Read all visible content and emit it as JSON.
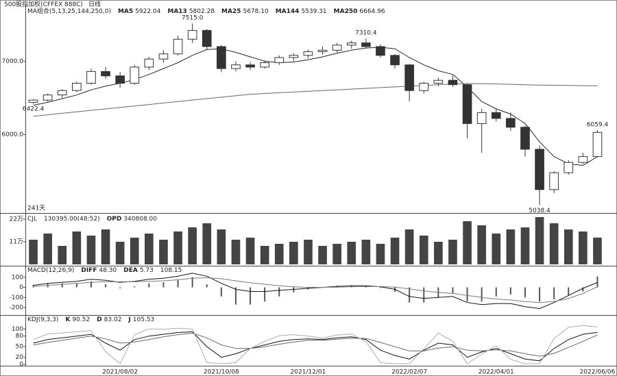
{
  "chart_data": [
    {
      "type": "candlestick",
      "title": "500股指加权(CFFEX 888C)",
      "period": "日线",
      "indicator": "MA组合(5,13,25,144,250,0)",
      "readouts": [
        {
          "name": "MA5",
          "value": 5922.04
        },
        {
          "name": "MA13",
          "value": 5802.28
        },
        {
          "name": "MA25",
          "value": 5678.1,
          "label": "5678.10"
        },
        {
          "name": "MA144",
          "value": 5539.31
        },
        {
          "name": "MA250",
          "value": 6664.96
        }
      ],
      "span_label": "241天",
      "categories": [
        null,
        null,
        null,
        null,
        null,
        null,
        "2021/08/02",
        null,
        null,
        null,
        null,
        null,
        null,
        "2021/10/08",
        null,
        null,
        null,
        null,
        null,
        "2021/12/01",
        null,
        null,
        null,
        null,
        null,
        null,
        "2022/02/07",
        null,
        null,
        null,
        null,
        null,
        "2022/04/01",
        null,
        null,
        null,
        null,
        null,
        null,
        "2022/06/06"
      ],
      "ohlc": [
        [
          6440,
          6480,
          6422.4,
          6470
        ],
        [
          6470,
          6560,
          6450,
          6540
        ],
        [
          6540,
          6620,
          6500,
          6600
        ],
        [
          6600,
          6720,
          6580,
          6700
        ],
        [
          6700,
          6900,
          6680,
          6860
        ],
        [
          6860,
          6920,
          6760,
          6800
        ],
        [
          6800,
          6850,
          6640,
          6700
        ],
        [
          6700,
          6950,
          6680,
          6920
        ],
        [
          6920,
          7060,
          6880,
          7030
        ],
        [
          7030,
          7150,
          6980,
          7100
        ],
        [
          7100,
          7350,
          7080,
          7300
        ],
        [
          7300,
          7515,
          7250,
          7420
        ],
        [
          7420,
          7440,
          7150,
          7200
        ],
        [
          7200,
          7220,
          6850,
          6900
        ],
        [
          6900,
          7000,
          6860,
          6950
        ],
        [
          6950,
          6990,
          6880,
          6920
        ],
        [
          6920,
          7010,
          6900,
          6980
        ],
        [
          6980,
          7080,
          6950,
          7050
        ],
        [
          7050,
          7110,
          7000,
          7080
        ],
        [
          7080,
          7160,
          7040,
          7130
        ],
        [
          7130,
          7200,
          7090,
          7150
        ],
        [
          7150,
          7250,
          7120,
          7220
        ],
        [
          7220,
          7280,
          7170,
          7250
        ],
        [
          7250,
          7310.4,
          7180,
          7200
        ],
        [
          7200,
          7230,
          7050,
          7080
        ],
        [
          7080,
          7100,
          6900,
          6950
        ],
        [
          6950,
          6960,
          6450,
          6600
        ],
        [
          6600,
          6720,
          6560,
          6700
        ],
        [
          6700,
          6780,
          6660,
          6740
        ],
        [
          6740,
          6800,
          6650,
          6680
        ],
        [
          6680,
          6700,
          5950,
          6150
        ],
        [
          6150,
          6350,
          5750,
          6300
        ],
        [
          6300,
          6350,
          6180,
          6220
        ],
        [
          6220,
          6300,
          6050,
          6100
        ],
        [
          6100,
          6120,
          5700,
          5800
        ],
        [
          5800,
          5850,
          5038.4,
          5250
        ],
        [
          5250,
          5500,
          5200,
          5480
        ],
        [
          5480,
          5650,
          5450,
          5620
        ],
        [
          5620,
          5750,
          5600,
          5700
        ],
        [
          5700,
          6059.4,
          5690,
          6030
        ]
      ],
      "up_color": "#ffffff",
      "down_color": "#333333",
      "series": [
        {
          "color": "#222222",
          "values": [
            6400,
            6440,
            6490,
            6540,
            6610,
            6660,
            6700,
            6750,
            6820,
            6900,
            6980,
            7080,
            7160,
            7170,
            7120,
            7060,
            7000,
            6980,
            6990,
            7020,
            7060,
            7110,
            7150,
            7180,
            7190,
            7170,
            7050,
            6950,
            6870,
            6820,
            6650,
            6450,
            6350,
            6280,
            6150,
            5900,
            5700,
            5600,
            5580,
            5700
          ]
        },
        {
          "color": "#666666",
          "values": [
            6250,
            6270,
            6290,
            6310,
            6330,
            6350,
            6370,
            6390,
            6410,
            6430,
            6450,
            6470,
            6490,
            6510,
            6530,
            6550,
            6560,
            6570,
            6580,
            6590,
            6600,
            6610,
            6620,
            6630,
            6640,
            6650,
            6660,
            6670,
            6680,
            6690,
            6695,
            6695,
            6690,
            6685,
            6680,
            6675,
            6672,
            6670,
            6667,
            6665
          ]
        }
      ],
      "annotations": [
        {
          "index": 11,
          "value": 7515,
          "label": "7515.0"
        },
        {
          "index": 23,
          "value": 7310.4
        },
        {
          "index": 0,
          "value": 6422.4
        },
        {
          "index": 39,
          "value": 6059.4
        },
        {
          "index": 35,
          "value": 5038.4
        }
      ],
      "ylim": [
        4940,
        7760
      ],
      "yticks": [
        {
          "value": 7000,
          "label": "7000.0"
        },
        {
          "value": 6000,
          "label": "6000.0"
        }
      ]
    },
    {
      "type": "bar",
      "indicator": "CJL",
      "readouts": [
        {
          "value": 130395,
          "label": "130395.00(48:52)"
        },
        {
          "name": "OPD",
          "value": 340808,
          "label": "340808.00"
        }
      ],
      "color": "#444444",
      "values": [
        120000,
        150000,
        90000,
        160000,
        140000,
        170000,
        110000,
        130000,
        150000,
        120000,
        160000,
        180000,
        200000,
        170000,
        120000,
        130000,
        90000,
        100000,
        110000,
        120000,
        90000,
        100000,
        110000,
        120000,
        100000,
        130000,
        170000,
        140000,
        110000,
        120000,
        210000,
        190000,
        150000,
        170000,
        180000,
        230000,
        200000,
        170000,
        160000,
        130395
      ],
      "ylim": [
        0,
        240000
      ],
      "yticks": [
        {
          "value": 220000,
          "label": "22万"
        },
        {
          "value": 110000,
          "label": "11万"
        }
      ]
    },
    {
      "type": "macd",
      "indicator": "MACD(12,26,9)",
      "readouts": [
        {
          "name": "DIFF",
          "value": 48.3,
          "label": "48.30"
        },
        {
          "name": "DEA",
          "value": 5.73
        },
        {
          "value": 108.15
        }
      ],
      "color": "#555555",
      "values": [
        20,
        40,
        40,
        40,
        60,
        30,
        -10,
        10,
        40,
        50,
        70,
        100,
        30,
        -90,
        -170,
        -170,
        -140,
        -90,
        -50,
        -20,
        0,
        16,
        20,
        14,
        -6,
        -44,
        -150,
        -150,
        -100,
        -60,
        -140,
        -140,
        -90,
        -70,
        -100,
        -140,
        -120,
        -80,
        -40,
        108.15
      ],
      "series": [
        {
          "color": "#111111",
          "values": [
            20,
            40,
            50,
            60,
            80,
            70,
            50,
            60,
            80,
            90,
            110,
            140,
            110,
            40,
            -20,
            -40,
            -40,
            -30,
            -20,
            -10,
            0,
            10,
            15,
            15,
            5,
            -20,
            -90,
            -110,
            -100,
            -90,
            -150,
            -170,
            -160,
            -160,
            -190,
            -210,
            -150,
            -80,
            -10,
            48.3
          ]
        },
        {
          "color": "#777777",
          "values": [
            10,
            20,
            30,
            40,
            50,
            55,
            55,
            55,
            60,
            65,
            75,
            90,
            95,
            85,
            65,
            45,
            30,
            15,
            5,
            0,
            0,
            2,
            5,
            8,
            8,
            2,
            -15,
            -35,
            -50,
            -60,
            -80,
            -100,
            -115,
            -125,
            -140,
            -150,
            -140,
            -110,
            -60,
            5.73
          ]
        }
      ],
      "ylim": [
        -260,
        200
      ],
      "yticks": [
        100,
        0,
        -100,
        -200
      ]
    },
    {
      "type": "line",
      "indicator": "KDJ(9,3,3)",
      "readouts": [
        {
          "name": "K",
          "value": 90.52
        },
        {
          "name": "D",
          "value": 83.02
        },
        {
          "name": "J",
          "value": 105.53
        }
      ],
      "series": [
        {
          "color": "#111111",
          "values": [
            60,
            70,
            75,
            80,
            85,
            60,
            40,
            70,
            80,
            85,
            90,
            92,
            50,
            20,
            30,
            45,
            55,
            65,
            70,
            72,
            70,
            75,
            78,
            70,
            40,
            25,
            15,
            40,
            60,
            55,
            20,
            35,
            45,
            30,
            15,
            10,
            45,
            70,
            85,
            90.52
          ]
        },
        {
          "color": "#666666",
          "values": [
            55,
            62,
            68,
            74,
            80,
            72,
            60,
            63,
            70,
            78,
            84,
            88,
            75,
            55,
            45,
            45,
            50,
            57,
            63,
            68,
            68,
            71,
            74,
            73,
            62,
            50,
            38,
            38,
            46,
            50,
            40,
            38,
            41,
            38,
            30,
            23,
            31,
            48,
            65,
            83.02
          ]
        },
        {
          "color": "#aaaaaa",
          "values": [
            70,
            86,
            89,
            92,
            95,
            36,
            2,
            84,
            100,
            99,
            102,
            100,
            5,
            2,
            5,
            45,
            65,
            81,
            84,
            80,
            74,
            83,
            86,
            64,
            5,
            2,
            2,
            44,
            88,
            65,
            2,
            29,
            53,
            14,
            2,
            2,
            73,
            105,
            110,
            105.53
          ]
        }
      ],
      "ylim": [
        0,
        120
      ],
      "yticks": [
        100,
        80,
        50,
        20,
        0
      ]
    }
  ]
}
